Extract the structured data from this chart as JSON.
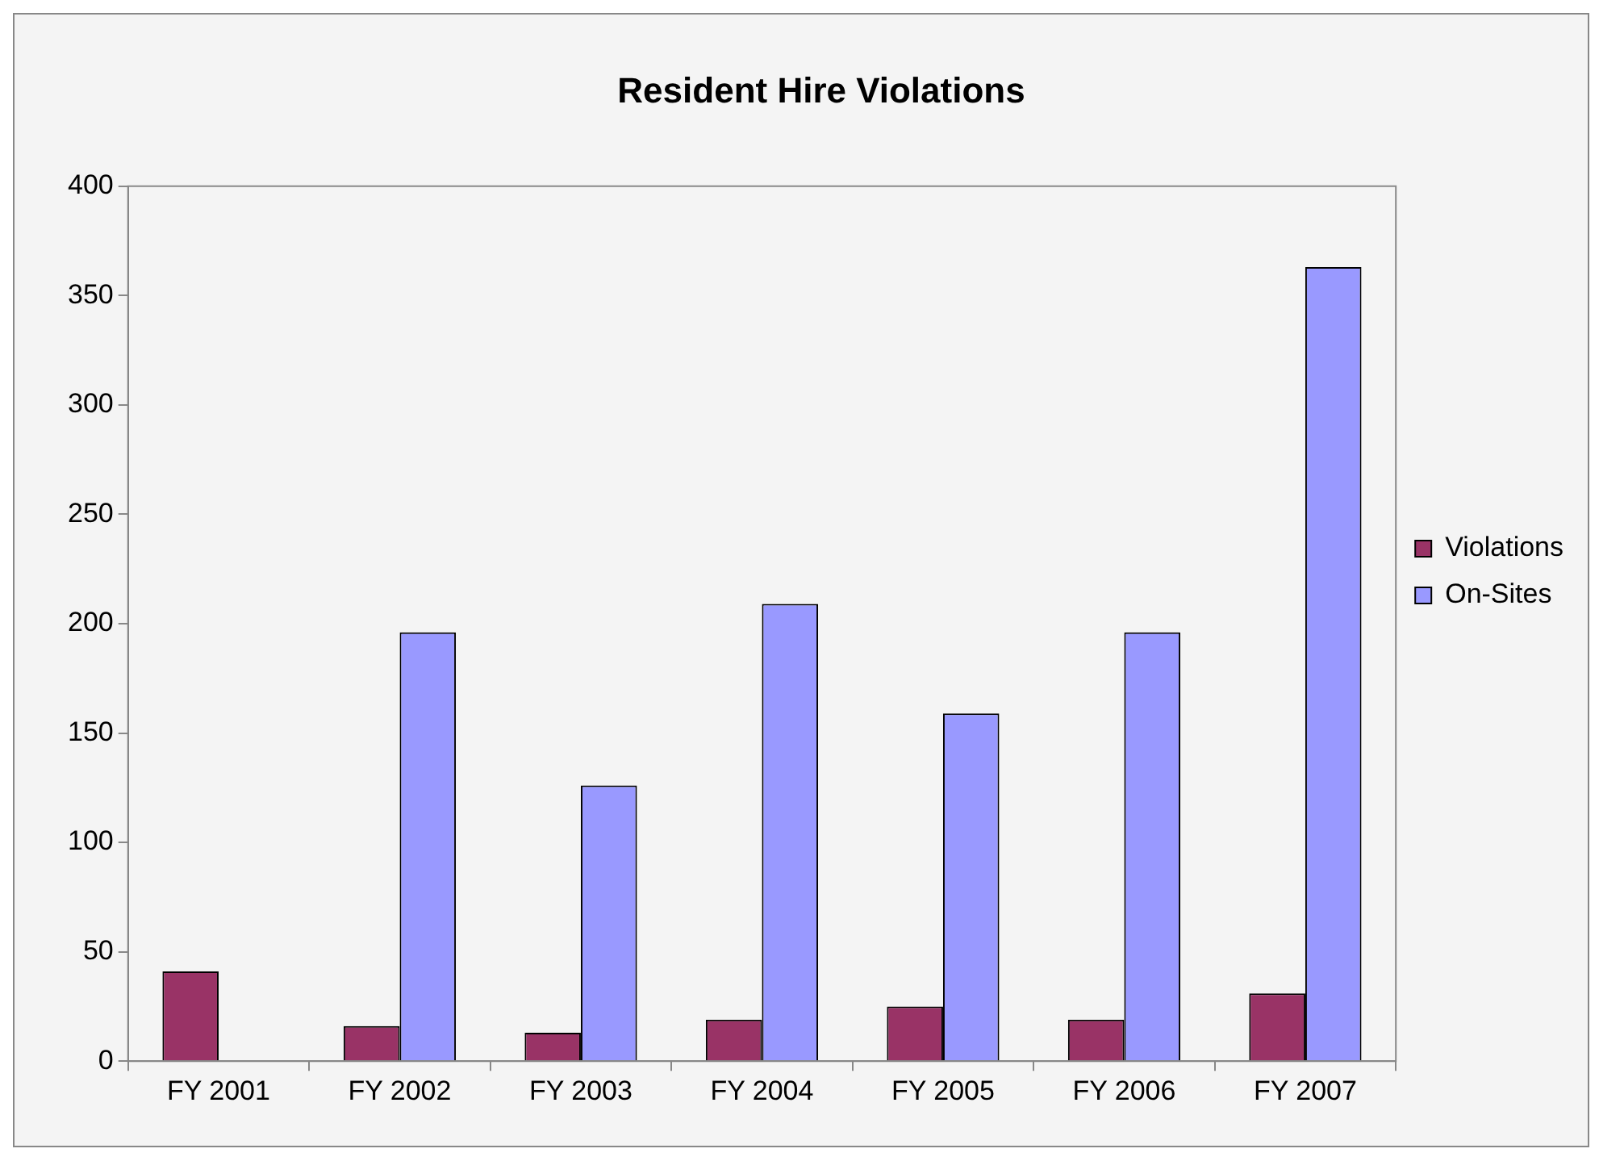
{
  "chart_data": {
    "type": "bar",
    "title": "Resident Hire Violations",
    "categories": [
      "FY 2001",
      "FY 2002",
      "FY 2003",
      "FY 2004",
      "FY 2005",
      "FY 2006",
      "FY 2007"
    ],
    "series": [
      {
        "name": "Violations",
        "color": "#993366",
        "values": [
          41,
          16,
          13,
          19,
          25,
          19,
          31
        ]
      },
      {
        "name": "On-Sites",
        "color": "#9999ff",
        "values": [
          null,
          196,
          126,
          209,
          159,
          196,
          363
        ]
      }
    ],
    "ylim": [
      0,
      400
    ],
    "yticks": [
      0,
      50,
      100,
      150,
      200,
      250,
      300,
      350,
      400
    ],
    "grid": false,
    "legend": "right"
  }
}
